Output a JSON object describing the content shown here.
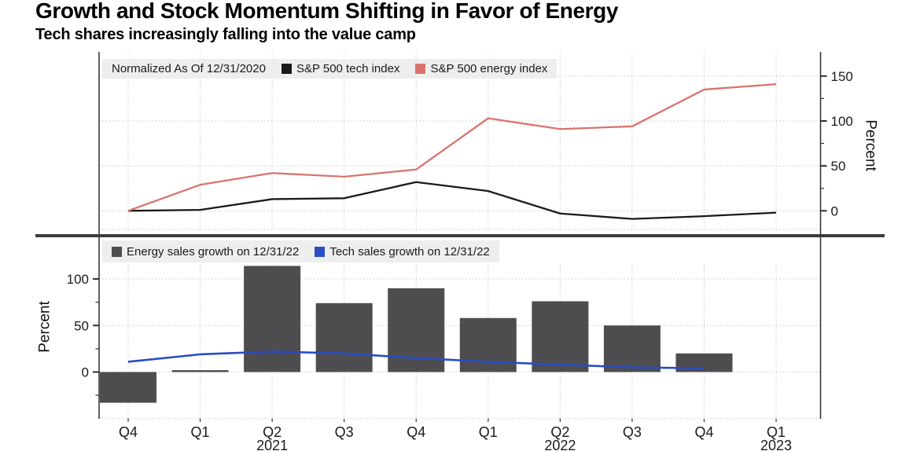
{
  "header": {
    "title": "Growth and Stock Momentum Shifting in Favor of Energy",
    "subtitle": "Tech shares increasingly falling into the value camp"
  },
  "colors": {
    "tech_index": "#1a1a1a",
    "energy_index": "#d9736e",
    "energy_bars": "#4d4d4f",
    "tech_sales": "#2a4cc4",
    "legend_bg": "#eeeeee",
    "grid": "#c9c9c9",
    "axis": "#2e2e2e",
    "separator": "#3b3b3b",
    "text": "#1a1a1a"
  },
  "top_chart": {
    "note": "Normalized As Of 12/31/2020",
    "y_axis_title": "Percent",
    "legend": [
      {
        "label": "S&P 500 tech index",
        "color": "#1a1a1a"
      },
      {
        "label": "S&P 500 energy index",
        "color": "#d9736e"
      }
    ]
  },
  "bottom_chart": {
    "y_axis_title": "Percent",
    "legend": [
      {
        "label": "Energy sales growth on 12/31/22",
        "color": "#4d4d4f"
      },
      {
        "label": "Tech sales growth on 12/31/22",
        "color": "#2a4cc4"
      }
    ]
  },
  "chart_data": [
    {
      "type": "line",
      "title": "Normalized As Of 12/31/2020",
      "categories": [
        "Q4 2020",
        "Q1 2021",
        "Q2 2021",
        "Q3 2021",
        "Q4 2021",
        "Q1 2022",
        "Q2 2022",
        "Q3 2022",
        "Q4 2022",
        "Q1 2023"
      ],
      "series": [
        {
          "name": "S&P 500 tech index",
          "color": "#1a1a1a",
          "values": [
            0,
            1,
            13,
            14,
            32,
            22,
            -3,
            -9,
            -6,
            -2
          ]
        },
        {
          "name": "S&P 500 energy index",
          "color": "#d9736e",
          "values": [
            0,
            29,
            42,
            38,
            46,
            103,
            91,
            94,
            135,
            141
          ]
        }
      ],
      "ylabel": "Percent",
      "y_ticks": [
        0,
        50,
        100,
        150
      ],
      "y_minor_ticks": [
        25,
        75,
        125
      ],
      "ylim": [
        -21,
        173
      ],
      "grid": true,
      "legend_position": "top-left",
      "y_axis_side": "right"
    },
    {
      "type": "bar",
      "categories": [
        "Q4 2020",
        "Q1 2021",
        "Q2 2021",
        "Q3 2021",
        "Q4 2021",
        "Q1 2022",
        "Q2 2022",
        "Q3 2022",
        "Q4 2022",
        "Q1 2023"
      ],
      "x_tick_labels": [
        "Q4",
        "Q1",
        "Q2",
        "Q3",
        "Q4",
        "Q1",
        "Q2",
        "Q3",
        "Q4",
        "Q1"
      ],
      "x_year_labels": [
        {
          "index": 2,
          "label": "2021"
        },
        {
          "index": 6,
          "label": "2022"
        },
        {
          "index": 9,
          "label": "2023"
        }
      ],
      "series": [
        {
          "name": "Energy sales growth on 12/31/22",
          "type": "bar",
          "color": "#4d4d4f",
          "values": [
            -33,
            2,
            114,
            74,
            90,
            58,
            76,
            50,
            20,
            null
          ]
        },
        {
          "name": "Tech sales growth on 12/31/22",
          "type": "line",
          "color": "#2a4cc4",
          "values": [
            11,
            19,
            22,
            20,
            15,
            11,
            8,
            5,
            4,
            null
          ]
        }
      ],
      "ylabel": "Percent",
      "y_ticks": [
        0,
        50,
        100
      ],
      "y_minor_ticks": [
        -25,
        25,
        75
      ],
      "ylim": [
        -50,
        116
      ],
      "grid": true,
      "legend_position": "top-left",
      "y_axis_side": "left"
    }
  ]
}
